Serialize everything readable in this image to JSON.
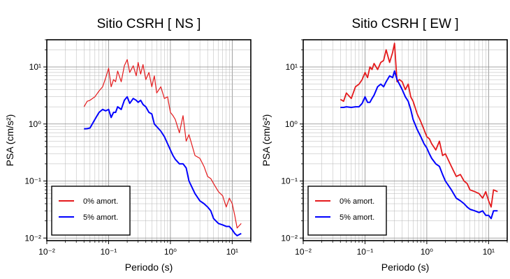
{
  "chart_data": [
    {
      "type": "line",
      "title": "Sitio CSRH [ NS ]",
      "xlabel": "Periodo (s)",
      "ylabel": "PSA (cm/s²)",
      "x_scale": "log",
      "y_scale": "log",
      "xlim": [
        0.01,
        20
      ],
      "ylim": [
        0.009,
        30
      ],
      "x_tick_labels": [
        "10⁻²",
        "10⁻¹",
        "10⁰",
        "10¹"
      ],
      "y_tick_labels": [
        "10⁻²",
        "10⁻¹",
        "10⁰",
        "10¹"
      ],
      "grid": true,
      "legend_position": "bottom-left",
      "series": [
        {
          "name": "0% amort.",
          "color": "#e41a1c",
          "x": [
            0.04,
            0.045,
            0.05,
            0.06,
            0.07,
            0.08,
            0.09,
            0.1,
            0.11,
            0.12,
            0.13,
            0.14,
            0.16,
            0.18,
            0.2,
            0.22,
            0.25,
            0.28,
            0.3,
            0.33,
            0.36,
            0.4,
            0.45,
            0.5,
            0.55,
            0.6,
            0.7,
            0.8,
            0.9,
            1.0,
            1.1,
            1.2,
            1.4,
            1.6,
            1.8,
            2.0,
            2.5,
            3.0,
            3.5,
            4.0,
            4.5,
            5.0,
            6.0,
            7.0,
            8.0,
            9.0,
            10,
            11,
            12,
            14
          ],
          "y": [
            2.0,
            2.5,
            2.6,
            3.0,
            3.8,
            4.5,
            6.5,
            9.5,
            4.5,
            6.0,
            5.5,
            8.5,
            5.5,
            10.5,
            13.5,
            8.0,
            10.5,
            7.0,
            12.0,
            7.5,
            11.0,
            6.0,
            8.0,
            4.5,
            7.0,
            3.5,
            4.5,
            2.8,
            3.0,
            1.6,
            1.4,
            1.2,
            0.7,
            1.4,
            0.5,
            0.65,
            0.28,
            0.25,
            0.18,
            0.12,
            0.11,
            0.09,
            0.065,
            0.055,
            0.035,
            0.05,
            0.04,
            0.025,
            0.015,
            0.018
          ]
        },
        {
          "name": "5% amort.",
          "color": "#0000ff",
          "x": [
            0.04,
            0.045,
            0.05,
            0.06,
            0.07,
            0.08,
            0.09,
            0.1,
            0.11,
            0.12,
            0.13,
            0.14,
            0.16,
            0.18,
            0.2,
            0.22,
            0.25,
            0.28,
            0.3,
            0.33,
            0.36,
            0.4,
            0.45,
            0.5,
            0.55,
            0.6,
            0.7,
            0.8,
            0.9,
            1.0,
            1.1,
            1.2,
            1.4,
            1.6,
            1.8,
            2.0,
            2.5,
            3.0,
            3.5,
            4.0,
            4.5,
            5.0,
            6.0,
            7.0,
            8.0,
            9.0,
            10,
            11,
            12,
            14
          ],
          "y": [
            0.82,
            0.83,
            0.85,
            1.2,
            1.6,
            1.8,
            1.7,
            1.8,
            1.3,
            1.6,
            1.6,
            2.0,
            1.8,
            2.6,
            3.0,
            2.3,
            2.8,
            2.6,
            2.4,
            2.6,
            2.2,
            2.0,
            1.6,
            1.5,
            1.0,
            0.9,
            0.75,
            0.6,
            0.45,
            0.35,
            0.28,
            0.24,
            0.2,
            0.2,
            0.17,
            0.1,
            0.06,
            0.045,
            0.04,
            0.035,
            0.03,
            0.022,
            0.018,
            0.017,
            0.016,
            0.016,
            0.014,
            0.012,
            0.011,
            0.012
          ]
        }
      ]
    },
    {
      "type": "line",
      "title": "Sitio CSRH [ EW ]",
      "xlabel": "Periodo (s)",
      "ylabel": "PSA (cm/s²)",
      "x_scale": "log",
      "y_scale": "log",
      "xlim": [
        0.01,
        20
      ],
      "ylim": [
        0.009,
        30
      ],
      "x_tick_labels": [
        "10⁻²",
        "10⁻¹",
        "10⁰",
        "10¹"
      ],
      "y_tick_labels": [
        "10⁻²",
        "10⁻¹",
        "10⁰",
        "10¹"
      ],
      "grid": true,
      "legend_position": "bottom-left",
      "series": [
        {
          "name": "0% amort.",
          "color": "#e41a1c",
          "x": [
            0.04,
            0.045,
            0.05,
            0.06,
            0.07,
            0.08,
            0.09,
            0.1,
            0.11,
            0.12,
            0.13,
            0.14,
            0.16,
            0.18,
            0.2,
            0.22,
            0.25,
            0.28,
            0.3,
            0.33,
            0.36,
            0.4,
            0.45,
            0.5,
            0.55,
            0.6,
            0.7,
            0.8,
            0.9,
            1.0,
            1.1,
            1.2,
            1.4,
            1.6,
            1.8,
            2.0,
            2.5,
            3.0,
            3.5,
            4.0,
            4.5,
            5.0,
            6.0,
            7.0,
            8.0,
            9.0,
            10,
            11,
            12,
            14
          ],
          "y": [
            2.7,
            2.5,
            3.5,
            2.8,
            4.5,
            5.0,
            6.0,
            8.0,
            6.5,
            10.0,
            9.0,
            11.5,
            9.0,
            12.0,
            13.0,
            20.0,
            12.0,
            18.0,
            26.0,
            5.5,
            6.0,
            5.5,
            4.0,
            5.0,
            3.0,
            2.5,
            1.5,
            1.1,
            0.8,
            0.6,
            0.55,
            0.45,
            0.35,
            0.5,
            0.28,
            0.3,
            0.18,
            0.12,
            0.13,
            0.1,
            0.09,
            0.07,
            0.065,
            0.06,
            0.05,
            0.065,
            0.045,
            0.035,
            0.07,
            0.065
          ]
        },
        {
          "name": "5% amort.",
          "color": "#0000ff",
          "x": [
            0.04,
            0.045,
            0.05,
            0.06,
            0.07,
            0.08,
            0.09,
            0.1,
            0.11,
            0.12,
            0.13,
            0.14,
            0.16,
            0.18,
            0.2,
            0.22,
            0.25,
            0.28,
            0.3,
            0.33,
            0.36,
            0.4,
            0.45,
            0.5,
            0.55,
            0.6,
            0.7,
            0.8,
            0.9,
            1.0,
            1.1,
            1.2,
            1.4,
            1.6,
            1.8,
            2.0,
            2.5,
            3.0,
            3.5,
            4.0,
            4.5,
            5.0,
            6.0,
            7.0,
            8.0,
            9.0,
            10,
            11,
            12,
            14
          ],
          "y": [
            1.95,
            1.95,
            2.0,
            1.95,
            2.0,
            2.0,
            2.3,
            3.0,
            2.4,
            2.4,
            2.8,
            3.2,
            4.5,
            5.0,
            4.5,
            5.5,
            7.0,
            6.5,
            8.5,
            6.0,
            5.0,
            4.0,
            3.0,
            2.5,
            1.8,
            1.2,
            0.8,
            0.6,
            0.45,
            0.38,
            0.3,
            0.25,
            0.2,
            0.18,
            0.13,
            0.1,
            0.07,
            0.05,
            0.045,
            0.04,
            0.035,
            0.032,
            0.03,
            0.028,
            0.03,
            0.025,
            0.025,
            0.022,
            0.03,
            0.03
          ]
        }
      ]
    }
  ]
}
